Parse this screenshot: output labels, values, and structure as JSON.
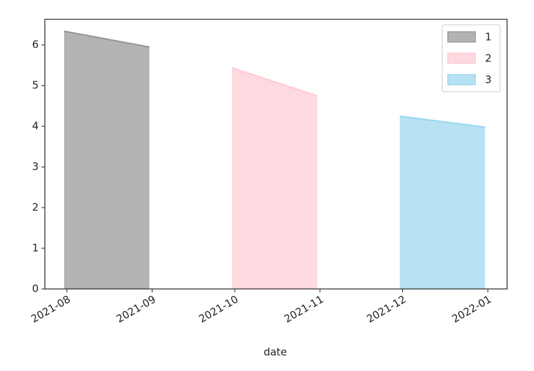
{
  "chart_data": {
    "type": "area",
    "xlabel": "date",
    "xlim": [
      "2021-07-24",
      "2022-01-08"
    ],
    "ylim": [
      0,
      6.63
    ],
    "xticks": [
      {
        "value": "2021-08-01",
        "label": "2021-08"
      },
      {
        "value": "2021-09-01",
        "label": "2021-09"
      },
      {
        "value": "2021-10-01",
        "label": "2021-10"
      },
      {
        "value": "2021-11-01",
        "label": "2021-11"
      },
      {
        "value": "2021-12-01",
        "label": "2021-12"
      },
      {
        "value": "2022-01-01",
        "label": "2022-01"
      }
    ],
    "yticks": [
      0,
      1,
      2,
      3,
      4,
      5,
      6
    ],
    "legend": "upper right",
    "series": [
      {
        "name": "1",
        "color": "#808080",
        "x": [
          "2021-07-31",
          "2021-08-31"
        ],
        "values": [
          6.34,
          5.95
        ]
      },
      {
        "name": "2",
        "color": "#ffc0cb",
        "x": [
          "2021-09-30",
          "2021-10-31"
        ],
        "values": [
          5.44,
          4.75
        ]
      },
      {
        "name": "3",
        "color": "#87ceeb",
        "x": [
          "2021-11-30",
          "2021-12-31"
        ],
        "values": [
          4.25,
          3.98
        ]
      }
    ]
  }
}
